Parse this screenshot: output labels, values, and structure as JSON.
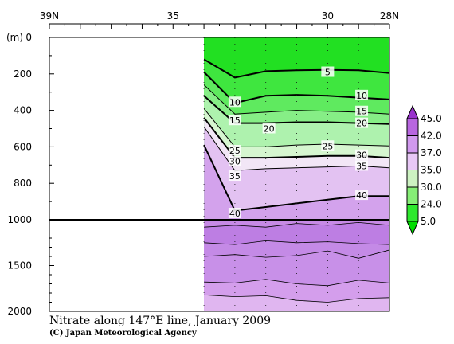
{
  "chart_data": {
    "type": "heatmap",
    "title": "Nitrate along 147°E line, January 2009",
    "credit": "(C) Japan Meteorological Agency",
    "ylabel": "(m)",
    "x_axis": {
      "min_lat": 28,
      "max_lat": 39,
      "ticks": [
        {
          "lat": 39,
          "label": "39N"
        },
        {
          "lat": 35,
          "label": "35"
        },
        {
          "lat": 30,
          "label": "30"
        },
        {
          "lat": 28,
          "label": "28N"
        }
      ]
    },
    "y_axis": {
      "upper_range": [
        0,
        1000
      ],
      "lower_range": [
        1000,
        2000
      ],
      "upper_ticks": [
        {
          "v": 0,
          "label": "0"
        },
        {
          "v": 200,
          "label": "200"
        },
        {
          "v": 400,
          "label": "400"
        },
        {
          "v": 600,
          "label": "600"
        },
        {
          "v": 800,
          "label": "800"
        },
        {
          "v": 1000,
          "label": "1000"
        }
      ],
      "lower_ticks": [
        {
          "v": 1500,
          "label": "1500"
        },
        {
          "v": 2000,
          "label": "2000"
        }
      ]
    },
    "data_start_lat": 34,
    "stations_lat": [
      34,
      33,
      32,
      31,
      30,
      29,
      28
    ],
    "contour_levels": [
      5,
      10,
      15,
      20,
      25,
      30,
      35,
      40
    ],
    "isolines": [
      {
        "value": 5,
        "depths": [
          120,
          220,
          185,
          180,
          178,
          180,
          195
        ]
      },
      {
        "value": 10,
        "depths": [
          190,
          360,
          320,
          315,
          320,
          330,
          340
        ]
      },
      {
        "value": 15,
        "depths": [
          260,
          420,
          410,
          400,
          405,
          410,
          420
        ]
      },
      {
        "value": 20,
        "depths": [
          320,
          470,
          470,
          465,
          465,
          470,
          475
        ]
      },
      {
        "value": 25,
        "depths": [
          390,
          600,
          600,
          590,
          585,
          590,
          595
        ]
      },
      {
        "value": 30,
        "depths": [
          440,
          660,
          660,
          655,
          650,
          650,
          660
        ]
      },
      {
        "value": 35,
        "depths": [
          490,
          730,
          720,
          715,
          710,
          705,
          715
        ]
      },
      {
        "value": 40,
        "depths": [
          590,
          950,
          930,
          910,
          890,
          870,
          870
        ]
      }
    ],
    "deep_contours": [
      {
        "depths": [
          1080,
          1060,
          1080,
          1040,
          1060,
          1030,
          1060
        ]
      },
      {
        "depths": [
          1250,
          1270,
          1230,
          1250,
          1240,
          1260,
          1270
        ]
      },
      {
        "depths": [
          1400,
          1380,
          1410,
          1390,
          1340,
          1420,
          1330
        ]
      },
      {
        "depths": [
          1680,
          1690,
          1650,
          1700,
          1720,
          1660,
          1690
        ]
      },
      {
        "depths": [
          1820,
          1840,
          1830,
          1880,
          1900,
          1860,
          1850
        ]
      }
    ],
    "contour_labels": [
      {
        "text": "5",
        "lat": 30.0,
        "depth": 190
      },
      {
        "text": "10",
        "lat": 33.0,
        "depth": 355
      },
      {
        "text": "10",
        "lat": 28.9,
        "depth": 318
      },
      {
        "text": "15",
        "lat": 33.0,
        "depth": 455
      },
      {
        "text": "15",
        "lat": 28.9,
        "depth": 405
      },
      {
        "text": "20",
        "lat": 31.9,
        "depth": 500
      },
      {
        "text": "20",
        "lat": 28.9,
        "depth": 470
      },
      {
        "text": "25",
        "lat": 33.0,
        "depth": 620
      },
      {
        "text": "25",
        "lat": 30.0,
        "depth": 595
      },
      {
        "text": "30",
        "lat": 33.0,
        "depth": 680
      },
      {
        "text": "30",
        "lat": 28.9,
        "depth": 645
      },
      {
        "text": "35",
        "lat": 33.0,
        "depth": 760
      },
      {
        "text": "35",
        "lat": 28.9,
        "depth": 705
      },
      {
        "text": "40",
        "lat": 33.0,
        "depth": 965
      },
      {
        "text": "40",
        "lat": 28.9,
        "depth": 865
      }
    ],
    "colorbar": {
      "labels": [
        "45.0",
        "42.0",
        "37.0",
        "35.0",
        "30.0",
        "24.0",
        "5.0"
      ],
      "colors": [
        "#9933cc",
        "#b866e0",
        "#d199ee",
        "#e8c8f6",
        "#cdf2c2",
        "#86ee76",
        "#2ee82e",
        "#00dd00"
      ]
    },
    "colors": {
      "green": "#00dd00",
      "light_green": "#88ee88",
      "pale": "#f4ecf6",
      "lavender": "#e0b6f0",
      "violet": "#c78ae6",
      "deep_violet": "#b26fdc"
    }
  }
}
